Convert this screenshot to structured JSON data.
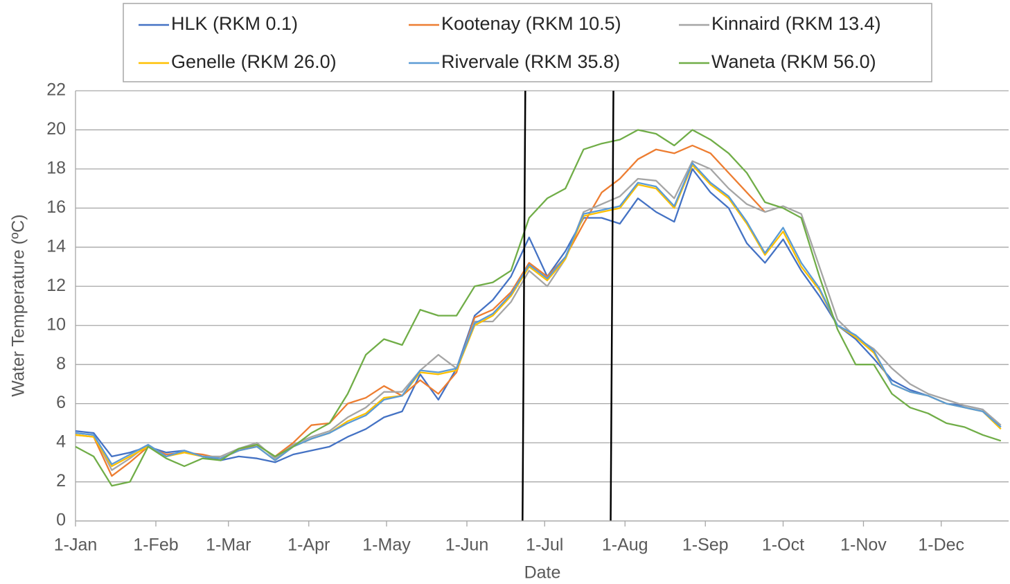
{
  "chart_data": {
    "type": "line",
    "x_label": "Date",
    "y_label": "Water Temperature (ºC)",
    "x": [
      0,
      7,
      14,
      21,
      28,
      35,
      42,
      49,
      56,
      63,
      70,
      77,
      84,
      91,
      98,
      105,
      112,
      119,
      126,
      133,
      140,
      147,
      154,
      161,
      168,
      175,
      182,
      189,
      196,
      203,
      210,
      217,
      224,
      231,
      238,
      245,
      252,
      259,
      266,
      273,
      280,
      287,
      294,
      301,
      308,
      315,
      322,
      329,
      336,
      343,
      350,
      357
    ],
    "xlim": [
      0,
      360
    ],
    "xticks": [
      {
        "value": 0,
        "label": "1-Jan"
      },
      {
        "value": 31,
        "label": "1-Feb"
      },
      {
        "value": 59,
        "label": "1-Mar"
      },
      {
        "value": 90,
        "label": "1-Apr"
      },
      {
        "value": 120,
        "label": "1-May"
      },
      {
        "value": 151,
        "label": "1-Jun"
      },
      {
        "value": 181,
        "label": "1-Jul"
      },
      {
        "value": 212,
        "label": "1-Aug"
      },
      {
        "value": 243,
        "label": "1-Sep"
      },
      {
        "value": 273,
        "label": "1-Oct"
      },
      {
        "value": 304,
        "label": "1-Nov"
      },
      {
        "value": 334,
        "label": "1-Dec"
      }
    ],
    "ylim": [
      0,
      22
    ],
    "yticks": [
      0,
      2,
      4,
      6,
      8,
      10,
      12,
      14,
      16,
      18,
      20,
      22
    ],
    "grid": true,
    "vlines": [
      173,
      207
    ],
    "legend": "top",
    "series": [
      {
        "name": "HLK (RKM 0.1)",
        "color": "#4472c4",
        "values": [
          4.6,
          4.5,
          3.3,
          3.5,
          3.8,
          3.5,
          3.6,
          3.3,
          3.1,
          3.3,
          3.2,
          3.0,
          3.4,
          3.6,
          3.8,
          4.3,
          4.7,
          5.3,
          5.6,
          7.5,
          6.2,
          7.8,
          10.5,
          11.3,
          12.5,
          14.5,
          12.5,
          13.8,
          15.5,
          15.5,
          15.2,
          16.5,
          15.8,
          15.3,
          18.0,
          16.8,
          16.0,
          14.2,
          13.2,
          14.4,
          12.8,
          11.5,
          10.0,
          9.3,
          8.3,
          7.2,
          6.7,
          6.4,
          6.0,
          5.9,
          5.7,
          4.8
        ]
      },
      {
        "name": "Kootenay (RKM 10.5)",
        "color": "#ed7d31",
        "values": [
          4.4,
          4.3,
          2.3,
          3.0,
          3.8,
          3.4,
          3.5,
          3.4,
          3.2,
          3.6,
          3.9,
          3.3,
          4.0,
          4.9,
          5.0,
          6.0,
          6.3,
          6.9,
          6.4,
          7.2,
          6.5,
          7.6,
          10.4,
          10.8,
          11.7,
          13.2,
          12.5,
          13.5,
          15.2,
          16.8,
          17.5,
          18.5,
          19.0,
          18.8,
          19.2,
          18.8,
          17.8,
          16.8,
          15.8,
          null,
          null,
          null,
          null,
          null,
          null,
          null,
          null,
          null,
          null,
          null,
          null,
          null
        ]
      },
      {
        "name": "Kinnaird (RKM 13.4)",
        "color": "#a5a5a5",
        "values": [
          4.5,
          4.4,
          2.6,
          3.2,
          3.9,
          3.3,
          3.5,
          3.3,
          3.3,
          3.7,
          4.0,
          3.2,
          3.9,
          4.3,
          4.6,
          5.3,
          5.8,
          6.6,
          6.6,
          7.7,
          8.5,
          7.8,
          10.2,
          10.2,
          11.2,
          12.8,
          12.0,
          13.4,
          15.8,
          16.2,
          16.6,
          17.5,
          17.4,
          16.5,
          18.4,
          18.0,
          17.0,
          16.2,
          15.8,
          16.1,
          15.7,
          13.0,
          10.3,
          9.4,
          8.8,
          7.8,
          7.0,
          6.5,
          6.2,
          5.9,
          5.7,
          4.9
        ]
      },
      {
        "name": "Genelle (RKM 26.0)",
        "color": "#ffc000",
        "values": [
          4.4,
          4.3,
          2.8,
          3.3,
          3.8,
          3.3,
          3.5,
          3.3,
          3.2,
          3.6,
          3.8,
          3.1,
          3.8,
          4.2,
          4.5,
          5.1,
          5.5,
          6.3,
          6.4,
          7.6,
          7.5,
          7.7,
          10.0,
          10.5,
          11.5,
          13.0,
          12.3,
          13.4,
          15.6,
          15.8,
          16.0,
          17.2,
          17.0,
          16.0,
          18.2,
          17.2,
          16.5,
          15.2,
          13.6,
          14.8,
          13.0,
          11.8,
          10.0,
          9.4,
          8.6,
          7.0,
          6.6,
          6.4,
          6.0,
          5.8,
          5.6,
          4.7
        ]
      },
      {
        "name": "Rivervale (RKM 35.8)",
        "color": "#5b9bd5",
        "values": [
          4.5,
          4.4,
          2.9,
          3.4,
          3.9,
          3.3,
          3.6,
          3.3,
          3.2,
          3.6,
          3.8,
          3.1,
          3.8,
          4.2,
          4.5,
          5.0,
          5.4,
          6.2,
          6.4,
          7.7,
          7.6,
          7.8,
          10.1,
          10.6,
          11.6,
          13.1,
          12.4,
          13.5,
          15.7,
          15.9,
          16.1,
          17.3,
          17.1,
          16.1,
          18.3,
          17.3,
          16.6,
          15.3,
          13.7,
          15.0,
          13.2,
          11.9,
          10.0,
          9.5,
          8.7,
          7.0,
          6.6,
          6.4,
          6.0,
          5.8,
          5.6,
          4.8
        ]
      },
      {
        "name": "Waneta (RKM 56.0)",
        "color": "#70ad47",
        "values": [
          3.8,
          3.3,
          1.8,
          2.0,
          3.8,
          3.2,
          2.8,
          3.2,
          3.1,
          3.7,
          3.9,
          3.3,
          3.8,
          4.5,
          5.0,
          6.5,
          8.5,
          9.3,
          9.0,
          10.8,
          10.5,
          10.5,
          12.0,
          12.2,
          12.8,
          15.5,
          16.5,
          17.0,
          19.0,
          19.3,
          19.5,
          20.0,
          19.8,
          19.2,
          20.0,
          19.5,
          18.8,
          17.8,
          16.3,
          16.0,
          15.5,
          12.5,
          9.8,
          8.0,
          8.0,
          6.5,
          5.8,
          5.5,
          5.0,
          4.8,
          4.4,
          4.1
        ]
      }
    ]
  }
}
